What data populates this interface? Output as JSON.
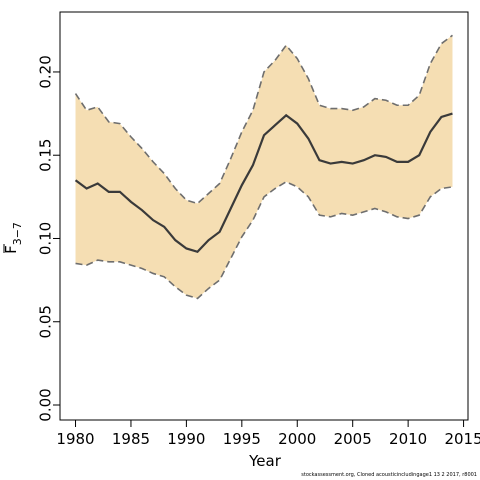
{
  "chart_data": {
    "type": "line",
    "xlabel": "Year",
    "ylabel_main": "F",
    "ylabel_sub": "3−7",
    "xlim": [
      1978.6,
      2015.4
    ],
    "ylim": [
      -0.009,
      0.236
    ],
    "xticks": [
      1980,
      1985,
      1990,
      1995,
      2000,
      2005,
      2010,
      2015
    ],
    "yticks": [
      "0.00",
      "0.05",
      "0.10",
      "0.15",
      "0.20"
    ],
    "grid": false,
    "colors": {
      "band": "#f5deb3",
      "bounds": "#6e6e6e",
      "estimate": "#3a3a3a"
    },
    "x": [
      1980,
      1981,
      1982,
      1983,
      1984,
      1985,
      1986,
      1987,
      1988,
      1989,
      1990,
      1991,
      1992,
      1993,
      1994,
      1995,
      1996,
      1997,
      1998,
      1999,
      2000,
      2001,
      2002,
      2003,
      2004,
      2005,
      2006,
      2007,
      2008,
      2009,
      2010,
      2011,
      2012,
      2013,
      2014
    ],
    "series": [
      {
        "role": "estimate",
        "values": [
          0.135,
          0.13,
          0.133,
          0.128,
          0.128,
          0.122,
          0.117,
          0.111,
          0.107,
          0.099,
          0.094,
          0.092,
          0.099,
          0.104,
          0.118,
          0.132,
          0.144,
          0.162,
          0.168,
          0.174,
          0.169,
          0.16,
          0.147,
          0.145,
          0.146,
          0.145,
          0.147,
          0.15,
          0.149,
          0.146,
          0.146,
          0.15,
          0.164,
          0.173,
          0.175
        ]
      },
      {
        "role": "upper",
        "values": [
          0.187,
          0.177,
          0.179,
          0.17,
          0.169,
          0.161,
          0.154,
          0.146,
          0.139,
          0.13,
          0.123,
          0.121,
          0.127,
          0.133,
          0.148,
          0.164,
          0.177,
          0.2,
          0.207,
          0.216,
          0.208,
          0.196,
          0.18,
          0.178,
          0.178,
          0.177,
          0.179,
          0.184,
          0.183,
          0.18,
          0.18,
          0.186,
          0.205,
          0.217,
          0.222
        ]
      },
      {
        "role": "lower",
        "values": [
          0.085,
          0.084,
          0.087,
          0.086,
          0.086,
          0.084,
          0.082,
          0.079,
          0.077,
          0.071,
          0.066,
          0.064,
          0.07,
          0.075,
          0.088,
          0.101,
          0.111,
          0.125,
          0.13,
          0.134,
          0.131,
          0.125,
          0.114,
          0.113,
          0.115,
          0.114,
          0.116,
          0.118,
          0.116,
          0.113,
          0.112,
          0.114,
          0.125,
          0.13,
          0.131
        ]
      }
    ]
  },
  "footnote": "stockassessment.org, Cloned  acousticincludingage1  13  2  2017, r8001"
}
